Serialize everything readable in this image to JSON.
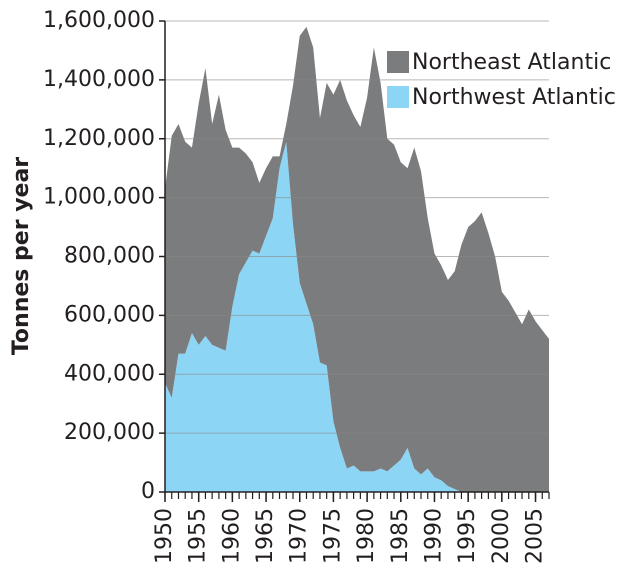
{
  "chart_data": {
    "type": "stacked_area",
    "y_label": "Tonnes per year",
    "x": [
      1950,
      1951,
      1952,
      1953,
      1954,
      1955,
      1956,
      1957,
      1958,
      1959,
      1960,
      1961,
      1962,
      1963,
      1964,
      1965,
      1966,
      1967,
      1968,
      1969,
      1970,
      1971,
      1972,
      1973,
      1974,
      1975,
      1976,
      1977,
      1978,
      1979,
      1980,
      1981,
      1982,
      1983,
      1984,
      1985,
      1986,
      1987,
      1988,
      1989,
      1990,
      1991,
      1992,
      1993,
      1994,
      1995,
      1996,
      1997,
      1998,
      1999,
      2000,
      2001,
      2002,
      2003,
      2004,
      2005,
      2006,
      2007
    ],
    "series": [
      {
        "name": "Northeast Atlantic",
        "color": "#7b7c7e",
        "values": [
          660000,
          890000,
          780000,
          720000,
          630000,
          820000,
          910000,
          750000,
          860000,
          750000,
          540000,
          430000,
          370000,
          300000,
          240000,
          230000,
          210000,
          40000,
          60000,
          470000,
          840000,
          940000,
          940000,
          830000,
          960000,
          1110000,
          1250000,
          1250000,
          1190000,
          1170000,
          1270000,
          1440000,
          1310000,
          1130000,
          1090000,
          1010000,
          950000,
          1090000,
          1030000,
          850000,
          760000,
          730000,
          700000,
          740000,
          840000,
          900000,
          920000,
          950000,
          880000,
          800000,
          680000,
          650000,
          610000,
          570000,
          620000,
          580000,
          550000,
          520000
        ]
      },
      {
        "name": "Northwest Atlantic",
        "color": "#8dd5f5",
        "values": [
          370000,
          320000,
          470000,
          470000,
          540000,
          500000,
          530000,
          500000,
          490000,
          480000,
          630000,
          740000,
          780000,
          820000,
          810000,
          870000,
          930000,
          1100000,
          1190000,
          910000,
          710000,
          640000,
          570000,
          440000,
          430000,
          240000,
          150000,
          80000,
          90000,
          70000,
          70000,
          70000,
          80000,
          70000,
          90000,
          110000,
          150000,
          80000,
          60000,
          80000,
          50000,
          40000,
          20000,
          10000,
          0,
          0,
          0,
          0,
          0,
          0,
          0,
          0,
          0,
          0,
          0,
          0,
          0,
          0
        ]
      }
    ],
    "xlim": [
      1950,
      2007
    ],
    "xticks": [
      1950,
      1955,
      1960,
      1965,
      1970,
      1975,
      1980,
      1985,
      1990,
      1995,
      2000,
      2005
    ],
    "ylim": [
      0,
      1600000
    ],
    "yticks": [
      0,
      {
        "value": 200000,
        "label": "200,000"
      },
      {
        "value": 400000,
        "label": "400,000"
      },
      {
        "value": 600000,
        "label": "600,000"
      },
      {
        "value": 800000,
        "label": "800,000"
      },
      {
        "value": 1000000,
        "label": "1,000,000"
      },
      {
        "value": 1200000,
        "label": "1,200,000"
      },
      {
        "value": 1400000,
        "label": "1,400,000"
      },
      {
        "value": 1600000,
        "label": "1,600,000"
      }
    ],
    "grid": true,
    "legend": "top-right"
  }
}
